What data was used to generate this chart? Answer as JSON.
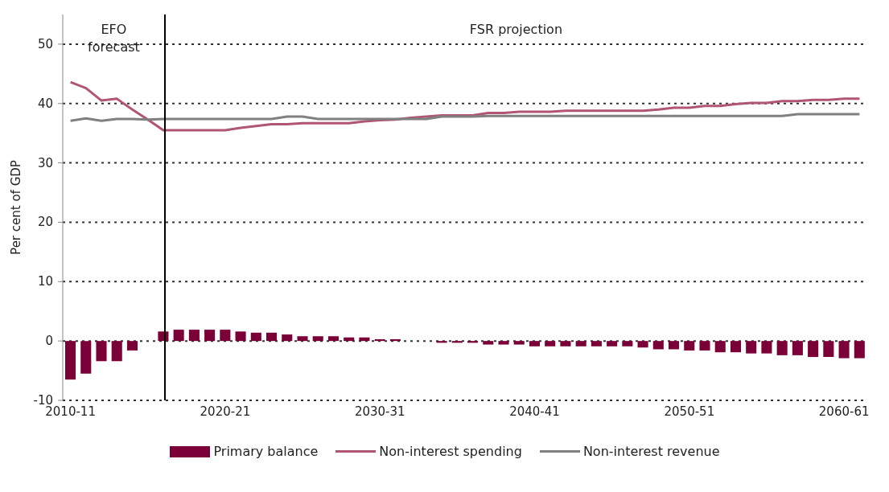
{
  "chart_data": {
    "type": "bar",
    "ylabel": "Per cent of GDP",
    "categories": [
      "2010-11",
      null,
      null,
      null,
      null,
      null,
      null,
      null,
      null,
      null,
      "2020-21",
      null,
      null,
      null,
      null,
      null,
      null,
      null,
      null,
      null,
      "2030-31",
      null,
      null,
      null,
      null,
      null,
      null,
      null,
      null,
      null,
      "2040-41",
      null,
      null,
      null,
      null,
      null,
      null,
      null,
      null,
      null,
      "2050-51",
      null,
      null,
      null,
      null,
      null,
      null,
      null,
      null,
      null,
      "2060-61",
      null
    ],
    "series": [
      {
        "name": "Primary balance",
        "color": "#7a0037",
        "values": [
          -6.5,
          -5.5,
          -3.4,
          -3.4,
          -1.6,
          0,
          1.6,
          1.9,
          1.9,
          1.9,
          1.9,
          1.6,
          1.4,
          1.4,
          1.1,
          0.8,
          0.8,
          0.8,
          0.6,
          0.6,
          0.3,
          0.3,
          0,
          0,
          -0.3,
          -0.3,
          -0.3,
          -0.6,
          -0.6,
          -0.6,
          -0.9,
          -0.9,
          -0.9,
          -0.9,
          -0.9,
          -0.9,
          -0.9,
          -1.1,
          -1.4,
          -1.4,
          -1.6,
          -1.6,
          -1.9,
          -1.9,
          -2.1,
          -2.1,
          -2.4,
          -2.4,
          -2.7,
          -2.7,
          -2.9,
          -2.9
        ]
      },
      {
        "name": "Non-interest spending",
        "type": "line",
        "color": "#b05574",
        "values": [
          43.6,
          42.6,
          40.5,
          40.8,
          39.0,
          37.3,
          35.5,
          35.5,
          35.5,
          35.5,
          35.5,
          35.9,
          36.2,
          36.5,
          36.5,
          36.7,
          36.7,
          36.7,
          36.7,
          37.0,
          37.2,
          37.3,
          37.6,
          37.8,
          38.0,
          38.0,
          38.0,
          38.4,
          38.4,
          38.6,
          38.6,
          38.6,
          38.8,
          38.8,
          38.8,
          38.8,
          38.8,
          38.8,
          39.0,
          39.3,
          39.3,
          39.6,
          39.6,
          39.9,
          40.1,
          40.1,
          40.4,
          40.4,
          40.6,
          40.6,
          40.8,
          40.8
        ]
      },
      {
        "name": "Non-interest revenue",
        "type": "line",
        "color": "#808080",
        "values": [
          37.1,
          37.5,
          37.1,
          37.4,
          37.4,
          37.3,
          37.4,
          37.4,
          37.4,
          37.4,
          37.4,
          37.4,
          37.4,
          37.4,
          37.8,
          37.8,
          37.4,
          37.4,
          37.4,
          37.4,
          37.4,
          37.4,
          37.4,
          37.4,
          37.8,
          37.8,
          37.8,
          37.9,
          37.9,
          37.9,
          37.9,
          37.9,
          37.9,
          37.9,
          37.9,
          37.9,
          37.9,
          37.9,
          37.9,
          37.9,
          37.9,
          37.9,
          37.9,
          37.9,
          37.9,
          37.9,
          37.9,
          38.2,
          38.2,
          38.2,
          38.2,
          38.2
        ]
      }
    ],
    "ylim": [
      -10,
      55
    ],
    "yticks": [
      -10,
      0,
      10,
      20,
      30,
      40,
      50
    ],
    "grid": "y",
    "legend": "bottom",
    "line_style": "solid",
    "marker": "none",
    "annotations": [
      "EFO forecast",
      "FSR projection"
    ]
  }
}
